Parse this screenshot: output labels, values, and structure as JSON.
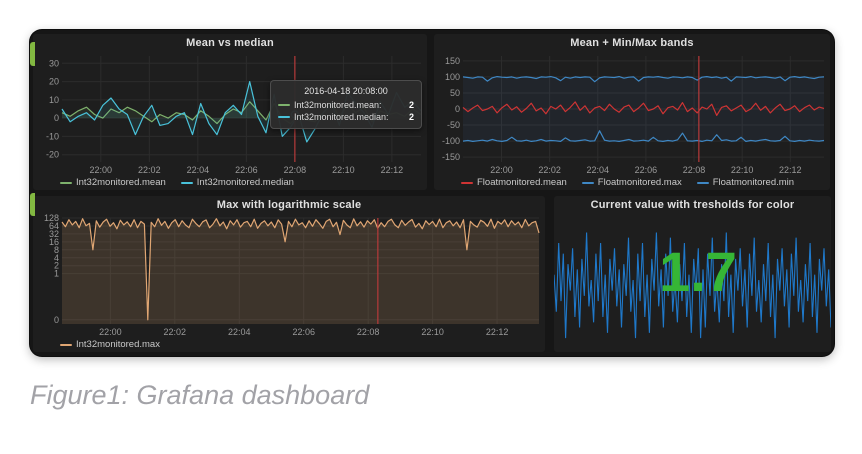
{
  "page": {
    "caption": "Figure1: Grafana dashboard"
  },
  "panels": [
    {
      "title": "Mean vs median",
      "legend": [
        {
          "label": "Int32monitored.mean",
          "color": "#7eb26d"
        },
        {
          "label": "Int32monitored.median",
          "color": "#49c2da"
        }
      ],
      "tooltip": {
        "time": "2016-04-18 20:08:00",
        "rows": [
          {
            "label": "Int32monitored.mean:",
            "value": "2",
            "color": "#7eb26d"
          },
          {
            "label": "Int32monitored.median:",
            "value": "2",
            "color": "#49c2da"
          }
        ]
      }
    },
    {
      "title": "Mean + Min/Max bands",
      "legend": [
        {
          "label": "Floatmonitored.mean",
          "color": "#cf3434"
        },
        {
          "label": "Floatmonitored.max",
          "color": "#3f88c5"
        },
        {
          "label": "Floatmonitored.min",
          "color": "#3f88c5"
        }
      ]
    },
    {
      "title": "Max with logarithmic scale",
      "legend": [
        {
          "label": "Int32monitored.max",
          "color": "#e0a673"
        }
      ]
    },
    {
      "title": "Current value with tresholds for color",
      "big_value": "1.7",
      "value_color": "#36b636"
    }
  ],
  "chart_data": [
    {
      "type": "line",
      "title": "Mean vs median",
      "xlim": [
        -1.6,
        13.2
      ],
      "ylim": [
        -24,
        34
      ],
      "y_ticks": [
        30,
        20,
        10,
        0,
        -10,
        -20
      ],
      "x_ticks": [
        {
          "m": 0,
          "label": "22:00"
        },
        {
          "m": 2,
          "label": "22:02"
        },
        {
          "m": 4,
          "label": "22:04"
        },
        {
          "m": 6,
          "label": "22:06"
        },
        {
          "m": 8,
          "label": "22:08"
        },
        {
          "m": 10,
          "label": "22:10"
        },
        {
          "m": 12,
          "label": "22:12"
        }
      ],
      "cursor": 8,
      "cursor_color": "#b73a3a",
      "marker": {
        "m": 8,
        "v": 2,
        "color": "#49c2da"
      },
      "series": [
        {
          "name": "Int32monitored.mean",
          "color": "#7eb26d",
          "fill": "rgba(126,178,109,0.10)",
          "baseline": "zero",
          "values": [
            3,
            1,
            4,
            6,
            2,
            0,
            5,
            3,
            6,
            4,
            1,
            -2,
            2,
            0,
            3,
            2,
            -1,
            4,
            1,
            -3,
            2,
            5,
            3,
            9,
            4,
            -1,
            8,
            0,
            -3,
            2,
            -1,
            -2,
            3,
            8,
            1,
            7,
            3,
            6,
            -2,
            4,
            2,
            3,
            1,
            5,
            2
          ]
        },
        {
          "name": "Int32monitored.median",
          "color": "#49c2da",
          "fill": "rgba(73,194,218,0.10)",
          "baseline": "zero",
          "values": [
            5,
            -2,
            1,
            3,
            -1,
            7,
            11,
            5,
            2,
            -9,
            1,
            7,
            -4,
            -3,
            1,
            3,
            -9,
            8,
            -3,
            -9,
            3,
            7,
            2,
            20,
            1,
            -8,
            13,
            -10,
            -5,
            2,
            -13,
            -6,
            3,
            8,
            -4,
            14,
            8,
            3,
            -5,
            9,
            2,
            14,
            6,
            9,
            4
          ]
        }
      ]
    },
    {
      "type": "line",
      "title": "Mean + Min/Max bands",
      "xlim": [
        -1.6,
        13.4
      ],
      "ylim": [
        -165,
        165
      ],
      "y_ticks": [
        150,
        100,
        50,
        0,
        -50,
        -100,
        -150
      ],
      "x_ticks": [
        {
          "m": 0,
          "label": "22:00"
        },
        {
          "m": 2,
          "label": "22:02"
        },
        {
          "m": 4,
          "label": "22:04"
        },
        {
          "m": 6,
          "label": "22:06"
        },
        {
          "m": 8,
          "label": "22:08"
        },
        {
          "m": 10,
          "label": "22:10"
        },
        {
          "m": 12,
          "label": "22:12"
        }
      ],
      "cursor": 8.2,
      "cursor_color": "#b73a3a",
      "band": {
        "top": 0,
        "bottom": 1,
        "color": "rgba(70,110,170,0.10)"
      },
      "series": [
        {
          "name": "Floatmonitored.max",
          "color": "#3f88c5",
          "values": [
            100,
            98,
            96,
            100,
            99,
            87,
            97,
            101,
            99,
            98,
            100,
            96,
            99,
            100,
            98,
            95,
            100,
            99,
            101,
            97,
            88,
            99,
            96,
            100,
            98,
            100,
            99,
            85,
            97,
            100,
            99,
            98,
            101,
            96,
            99,
            100,
            87,
            98,
            100,
            99,
            101,
            98,
            96,
            100,
            99,
            97,
            100,
            98,
            90,
            99,
            101,
            98,
            100,
            96,
            99,
            87,
            100,
            99,
            98,
            101,
            97,
            99,
            100,
            98,
            96,
            100,
            88,
            99,
            101,
            98,
            100,
            97,
            95,
            99,
            100
          ]
        },
        {
          "name": "Floatmonitored.min",
          "color": "#3f88c5",
          "values": [
            -100,
            -98,
            -101,
            -99,
            -97,
            -100,
            -95,
            -99,
            -101,
            -98,
            -88,
            -99,
            -100,
            -97,
            -101,
            -99,
            -95,
            -100,
            -98,
            -99,
            -101,
            -90,
            -99,
            -100,
            -98,
            -96,
            -100,
            -99,
            -68,
            -97,
            -100,
            -99,
            -101,
            -98,
            -95,
            -100,
            -99,
            -97,
            -100,
            -88,
            -99,
            -101,
            -98,
            -100,
            -96,
            -75,
            -99,
            -100,
            -98,
            -101,
            -97,
            -99,
            -80,
            -98,
            -96,
            -100,
            -99,
            -88,
            -101,
            -98,
            -100,
            -97,
            -95,
            -99,
            -100,
            -98,
            -85,
            -99,
            -101,
            -98,
            -100,
            -97,
            -99,
            -100,
            -98
          ]
        },
        {
          "name": "Floatmonitored.mean",
          "color": "#cf3434",
          "values": [
            5,
            -8,
            3,
            12,
            -5,
            0,
            8,
            -12,
            4,
            15,
            -3,
            7,
            -10,
            2,
            18,
            -6,
            3,
            -15,
            8,
            0,
            12,
            -8,
            5,
            22,
            -4,
            10,
            -12,
            3,
            8,
            -5,
            15,
            0,
            -10,
            6,
            12,
            -8,
            3,
            18,
            -5,
            0,
            10,
            -15,
            4,
            8,
            -3,
            20,
            -8,
            3,
            -12,
            6,
            0,
            15,
            -20,
            5,
            10,
            -6,
            3,
            12,
            -8,
            0,
            18,
            -4,
            8,
            -12,
            3,
            15,
            -5,
            0,
            10,
            -8,
            4,
            12,
            -3,
            6,
            2
          ]
        }
      ]
    },
    {
      "type": "log2",
      "title": "Max with logarithmic scale",
      "xlim": [
        -1.5,
        13.3
      ],
      "y_ticks": [
        128,
        64,
        32,
        16,
        8,
        4,
        2,
        1,
        0
      ],
      "x_ticks": [
        {
          "m": 0,
          "label": "22:00"
        },
        {
          "m": 2,
          "label": "22:02"
        },
        {
          "m": 4,
          "label": "22:04"
        },
        {
          "m": 6,
          "label": "22:06"
        },
        {
          "m": 8,
          "label": "22:08"
        },
        {
          "m": 10,
          "label": "22:10"
        },
        {
          "m": 12,
          "label": "22:12"
        }
      ],
      "cursor": 8.3,
      "cursor_color": "#b73a3a",
      "series": [
        {
          "name": "Int32monitored.max",
          "color": "#e0a673",
          "fill": "rgba(224,166,115,0.16)",
          "baseline": "bottom",
          "values": [
            90,
            60,
            110,
            70,
            95,
            55,
            120,
            65,
            80,
            8,
            100,
            58,
            90,
            115,
            62,
            85,
            50,
            105,
            70,
            92,
            60,
            110,
            55,
            95,
            75,
            0.05,
            88,
            60,
            120,
            68,
            95,
            52,
            85,
            110,
            60,
            100,
            70,
            55,
            115,
            80,
            60,
            92,
            108,
            55,
            75,
            120,
            65,
            90,
            50,
            100,
            70,
            110,
            58,
            85,
            95,
            60,
            115,
            52,
            80,
            100,
            65,
            90,
            55,
            108,
            75,
            16,
            95,
            60,
            115,
            70,
            85,
            55,
            100,
            62,
            110,
            78,
            52,
            95,
            115,
            60,
            88,
            30,
            105,
            70,
            55,
            118,
            65,
            92,
            58,
            100,
            75,
            110,
            52,
            85,
            60,
            95,
            115,
            70,
            55,
            105,
            68,
            90,
            112,
            58,
            80,
            50,
            100,
            72,
            95,
            60,
            115,
            55,
            85,
            100,
            65,
            90,
            55,
            110,
            8,
            95,
            70,
            58,
            105,
            88,
            62,
            115,
            52,
            95,
            75,
            108,
            60,
            100,
            70,
            90,
            55,
            112,
            65,
            85,
            95,
            35
          ]
        }
      ]
    },
    {
      "type": "sparkline",
      "title": "Current value with tresholds for color",
      "color": "#1f78c9",
      "values": [
        0.2,
        -0.5,
        0.8,
        -0.3,
        0.6,
        -1.0,
        0.4,
        -0.1,
        0.7,
        -0.6,
        0.3,
        -0.8,
        0.5,
        -0.2,
        1.0,
        -0.4,
        0.1,
        -0.7,
        0.6,
        -0.3,
        0.8,
        -0.6,
        0.2,
        -0.9,
        0.5,
        -0.1,
        0.7,
        -0.4,
        0.3,
        -0.8,
        0.4,
        -0.2,
        0.9,
        -0.5,
        0.1,
        -1.0,
        0.6,
        -0.3,
        0.8,
        -0.6,
        0.2,
        -0.9,
        0.5,
        -0.1,
        1.0,
        -0.4,
        0.3,
        -0.8,
        0.6,
        -0.2,
        0.9,
        -0.5,
        0.1,
        -0.7,
        0.4,
        -0.3,
        0.8,
        -0.6,
        0.2,
        -0.9,
        0.5,
        -0.1,
        0.7,
        -1.0,
        0.3,
        -0.8,
        0.6,
        -0.2,
        0.9,
        -0.5,
        0.1,
        -0.7,
        0.4,
        -0.3,
        1.0,
        -0.6,
        0.2,
        -0.9,
        0.5,
        -0.1,
        0.7,
        -0.4,
        0.3,
        -0.8,
        0.6,
        -0.2,
        0.9,
        -0.5,
        0.1,
        -0.7,
        0.4,
        -0.3,
        0.8,
        -0.6,
        0.2,
        -1.0,
        0.5,
        -0.1,
        0.7,
        -0.4,
        0.3,
        -0.8,
        0.6,
        -0.2,
        0.9,
        -0.5,
        0.1,
        -0.7,
        0.4,
        -0.3,
        0.8,
        -0.6,
        0.2,
        -0.9,
        0.5,
        -0.1,
        0.7,
        -0.4,
        0.3,
        -0.8
      ]
    }
  ]
}
